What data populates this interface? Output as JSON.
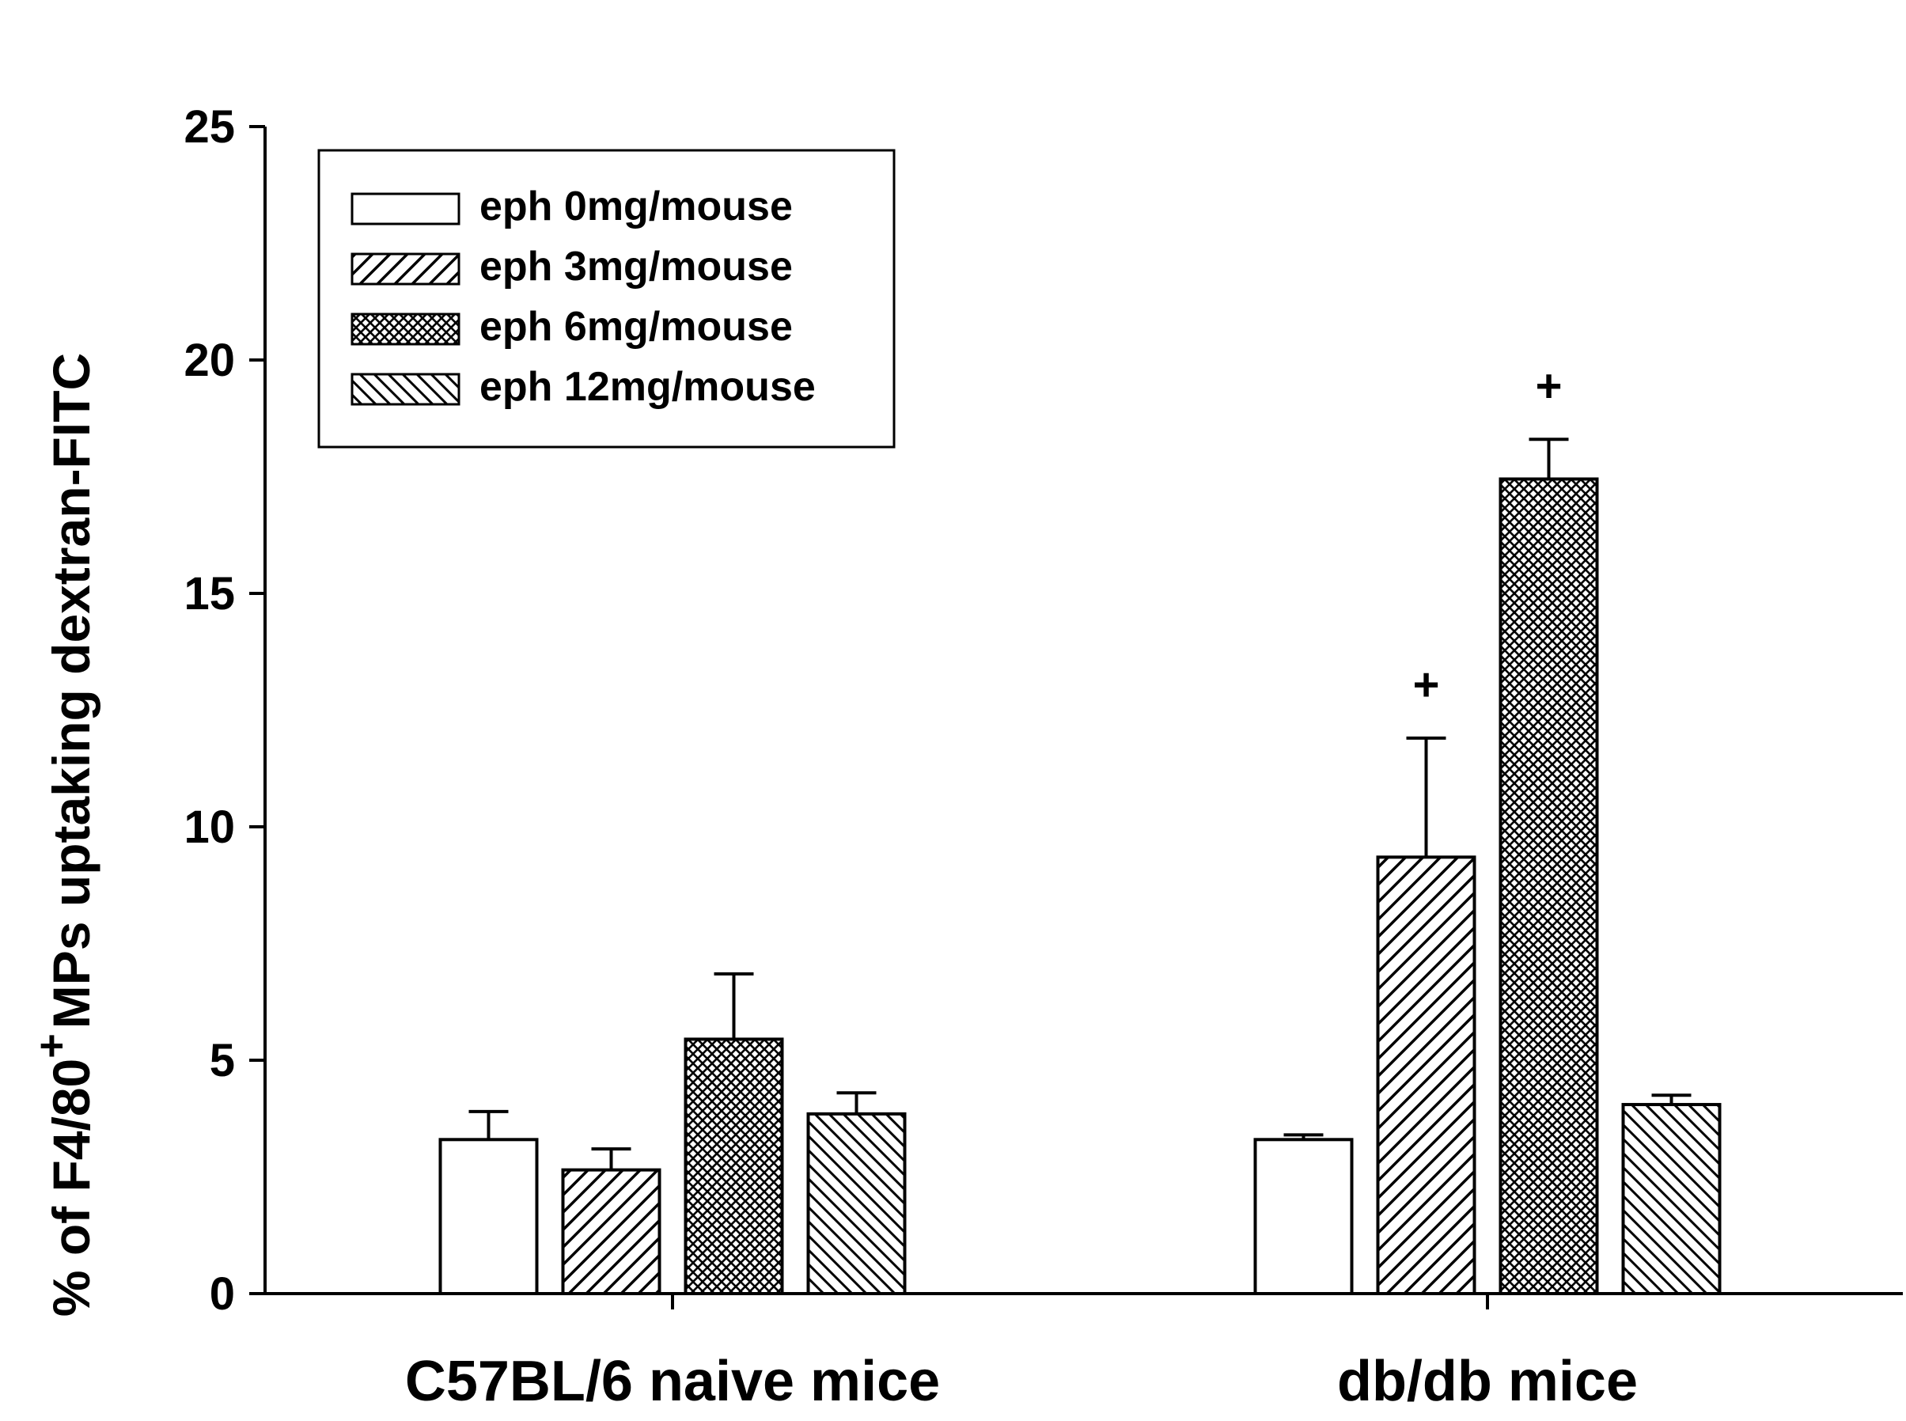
{
  "chart_data": {
    "type": "bar",
    "categories": [
      "C57BL/6 naive mice",
      "db/db mice"
    ],
    "series": [
      {
        "name": "eph 0mg/mouse",
        "pattern": "none",
        "values": [
          3.3,
          3.3
        ],
        "errors": [
          0.6,
          0.1
        ]
      },
      {
        "name": "eph 3mg/mouse",
        "pattern": "diag-up",
        "values": [
          2.65,
          9.35
        ],
        "errors": [
          0.45,
          2.55
        ]
      },
      {
        "name": "eph 6mg/mouse",
        "pattern": "crosshatch",
        "values": [
          5.45,
          17.45
        ],
        "errors": [
          1.4,
          0.85
        ]
      },
      {
        "name": "eph 12mg/mouse",
        "pattern": "diag-down",
        "values": [
          3.85,
          4.05
        ],
        "errors": [
          0.45,
          0.2
        ]
      }
    ],
    "annotations": [
      {
        "category": "db/db mice",
        "series": "eph 3mg/mouse",
        "text": "+"
      },
      {
        "category": "db/db mice",
        "series": "eph 6mg/mouse",
        "text": "+"
      }
    ],
    "title": "",
    "xlabel": "",
    "ylabel_parts": {
      "pre": "% of F4/80",
      "sup": "+",
      "post": "MPs uptaking dextran-FITC"
    },
    "ylim": [
      0,
      25
    ],
    "yticks": [
      "0",
      "5",
      "10",
      "15",
      "20",
      "25"
    ],
    "grid": false,
    "legend_position": "top-left",
    "colors": {
      "bar_fill": "#ffffff",
      "stroke": "#000000",
      "hatch": "#000000"
    }
  }
}
